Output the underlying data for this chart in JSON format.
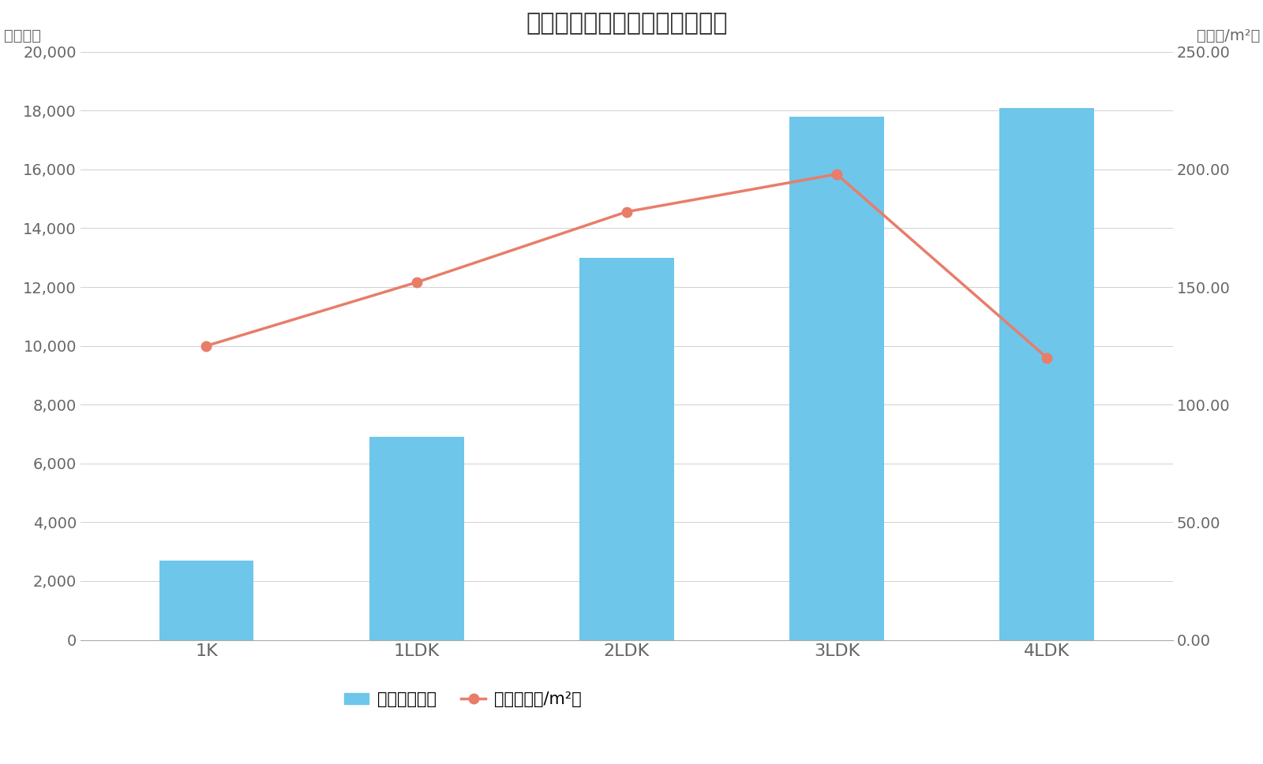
{
  "title": "渋谷区間取り別マンション価格",
  "categories": [
    "1K",
    "1LDK",
    "2LDK",
    "3LDK",
    "4LDK"
  ],
  "bar_values": [
    2700,
    6900,
    13000,
    17800,
    18100
  ],
  "line_values": [
    125,
    152,
    182,
    198,
    120
  ],
  "bar_color": "#6EC6EA",
  "line_color": "#E87D6A",
  "left_ylabel": "（万円）",
  "right_ylabel": "（万円/m²）",
  "left_ylim": [
    0,
    20000
  ],
  "right_ylim": [
    0,
    250
  ],
  "left_yticks": [
    0,
    2000,
    4000,
    6000,
    8000,
    10000,
    12000,
    14000,
    16000,
    18000,
    20000
  ],
  "right_yticks": [
    0,
    50.0,
    100.0,
    150.0,
    200.0,
    250.0
  ],
  "legend_bar_label": "価格（万円）",
  "legend_line_label": "単価（万円/m²）",
  "background_color": "#ffffff",
  "grid_color": "#d0d0d0",
  "tick_label_color": "#666666",
  "title_fontsize": 22,
  "axis_label_fontsize": 14,
  "tick_fontsize": 14,
  "legend_fontsize": 15
}
